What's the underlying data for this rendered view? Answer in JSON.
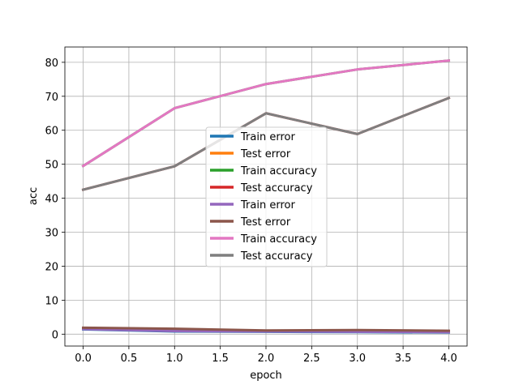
{
  "chart_data": {
    "type": "line",
    "title": "",
    "xlabel": "epoch",
    "ylabel": "acc",
    "xlim": [
      -0.2,
      4.2
    ],
    "ylim": [
      -3.5,
      84.5
    ],
    "xticks": [
      0.0,
      0.5,
      1.0,
      1.5,
      2.0,
      2.5,
      3.0,
      3.5,
      4.0
    ],
    "xtick_labels": [
      "0.0",
      "0.5",
      "1.0",
      "1.5",
      "2.0",
      "2.5",
      "3.0",
      "3.5",
      "4.0"
    ],
    "yticks": [
      0,
      10,
      20,
      30,
      40,
      50,
      60,
      70,
      80
    ],
    "ytick_labels": [
      "0",
      "10",
      "20",
      "30",
      "40",
      "50",
      "60",
      "70",
      "80"
    ],
    "grid": true,
    "legend_position": "center",
    "x": [
      0,
      1,
      2,
      3,
      4
    ],
    "series": [
      {
        "name": "Train error",
        "color": "#1f77b4",
        "values": [
          1.4,
          0.8,
          0.7,
          0.6,
          0.5
        ]
      },
      {
        "name": "Test error",
        "color": "#ff7f0e",
        "values": [
          1.6,
          1.4,
          1.0,
          1.1,
          0.9
        ]
      },
      {
        "name": "Train accuracy",
        "color": "#2ca02c",
        "values": [
          49.5,
          66.5,
          73.6,
          77.9,
          80.5
        ]
      },
      {
        "name": "Test accuracy",
        "color": "#d62728",
        "values": [
          42.5,
          49.4,
          65.0,
          58.9,
          69.5
        ]
      },
      {
        "name": "Train error",
        "color": "#9467bd",
        "values": [
          1.5,
          0.9,
          0.8,
          0.7,
          0.6
        ]
      },
      {
        "name": "Test error",
        "color": "#8c564b",
        "values": [
          1.9,
          1.6,
          1.1,
          1.2,
          1.0
        ]
      },
      {
        "name": "Train accuracy",
        "color": "#e377c2",
        "values": [
          49.5,
          66.5,
          73.6,
          77.9,
          80.5
        ]
      },
      {
        "name": "Test accuracy",
        "color": "#7f7f7f",
        "values": [
          42.5,
          49.4,
          65.0,
          58.9,
          69.5
        ]
      }
    ]
  }
}
